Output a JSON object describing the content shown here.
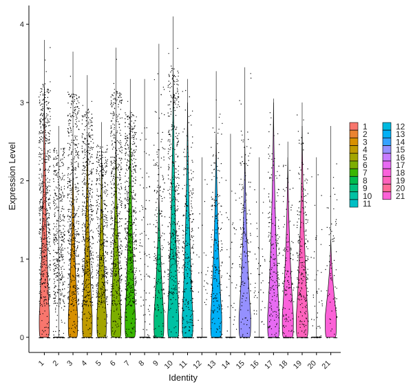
{
  "chart_data": {
    "type": "violin",
    "title": "",
    "xlabel": "Identity",
    "ylabel": "Expression Level",
    "ylim": [
      -0.2,
      4.1
    ],
    "yticks": [
      0,
      1,
      2,
      3,
      4
    ],
    "categories": [
      "1",
      "2",
      "3",
      "4",
      "5",
      "6",
      "7",
      "8",
      "9",
      "10",
      "11",
      "12",
      "13",
      "14",
      "15",
      "16",
      "17",
      "18",
      "19",
      "20",
      "21"
    ],
    "colors": [
      "#F8766D",
      "#EA8331",
      "#D89000",
      "#C09B00",
      "#A3A500",
      "#7CAE00",
      "#39B600",
      "#00BB4E",
      "#00BF7D",
      "#00C1A3",
      "#00BFC4",
      "#00BAE0",
      "#00B0F6",
      "#35A2FF",
      "#9590FF",
      "#C77CFF",
      "#E76BF3",
      "#FA62DB",
      "#FF62BC",
      "#FF6A98",
      "#FB61D7"
    ],
    "series_max": [
      3.8,
      2.7,
      3.65,
      3.35,
      2.75,
      3.7,
      3.3,
      3.3,
      3.75,
      4.1,
      3.3,
      2.3,
      3.4,
      2.6,
      3.45,
      2.3,
      3.05,
      2.5,
      3.0,
      2.3,
      2.7
    ],
    "dot_density": [
      1.0,
      0.7,
      0.9,
      0.9,
      0.7,
      0.9,
      0.9,
      0.15,
      0.35,
      0.7,
      0.5,
      0.05,
      0.35,
      0.08,
      0.3,
      0.08,
      0.35,
      0.25,
      0.4,
      0.08,
      0.12
    ],
    "violin_shape": [
      {
        "base": 0.18,
        "top": 3.2
      },
      {
        "base": 0.0,
        "top": 0.0
      },
      {
        "base": 0.12,
        "top": 2.3
      },
      {
        "base": 0.15,
        "top": 2.6
      },
      {
        "base": 0.12,
        "top": 2.4
      },
      {
        "base": 0.18,
        "top": 2.6
      },
      {
        "base": 0.2,
        "top": 2.9
      },
      {
        "base": 0.0,
        "top": 0.0
      },
      {
        "base": 0.16,
        "top": 1.9
      },
      {
        "base": 0.25,
        "top": 3.4
      },
      {
        "base": 0.22,
        "top": 3.0
      },
      {
        "base": 0.0,
        "top": 0.0
      },
      {
        "base": 0.25,
        "top": 2.6
      },
      {
        "base": 0.0,
        "top": 0.0
      },
      {
        "base": 0.3,
        "top": 2.45
      },
      {
        "base": 0.0,
        "top": 0.0
      },
      {
        "base": 0.3,
        "top": 3.0
      },
      {
        "base": 0.25,
        "top": 2.3
      },
      {
        "base": 0.3,
        "top": 2.7
      },
      {
        "base": 0.0,
        "top": 0.0
      },
      {
        "base": 0.25,
        "top": 1.25
      }
    ],
    "legend": {
      "placement": "right",
      "columns": [
        [
          "1",
          "2",
          "3",
          "4",
          "5",
          "6",
          "7",
          "8",
          "9",
          "10",
          "11"
        ],
        [
          "12",
          "13",
          "14",
          "15",
          "16",
          "17",
          "18",
          "19",
          "20",
          "21"
        ]
      ]
    }
  }
}
